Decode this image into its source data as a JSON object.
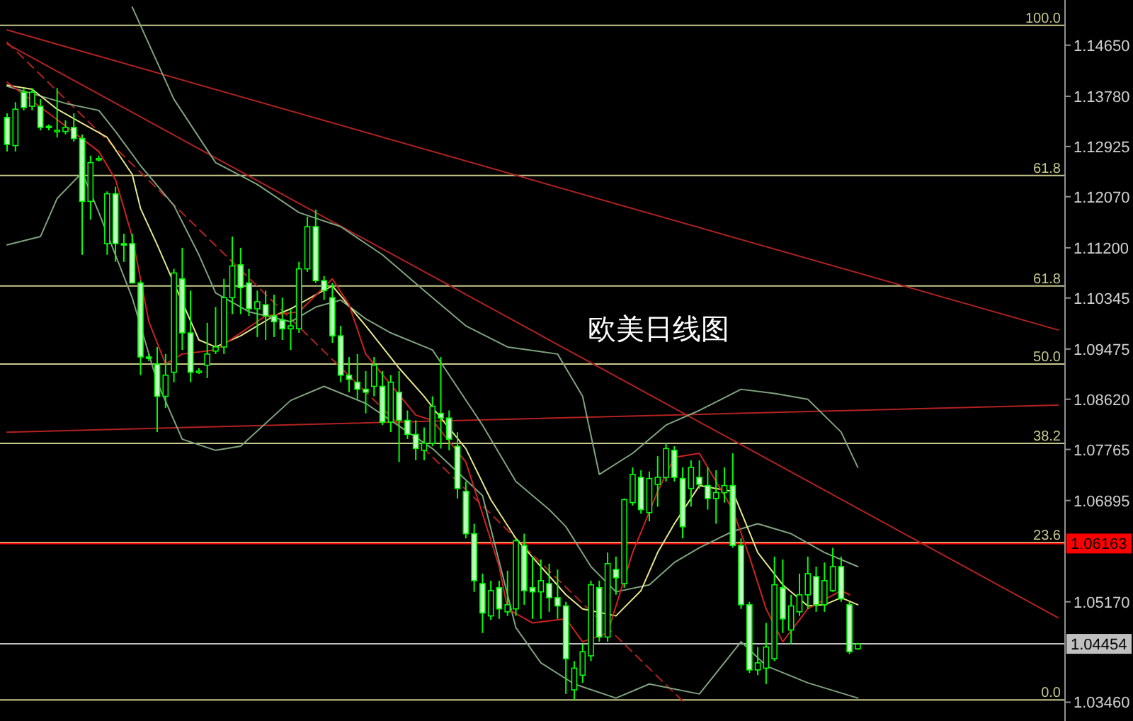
{
  "chart_data": {
    "type": "candlestick",
    "title": "欧美日线图",
    "categories": [
      null,
      null,
      null,
      null,
      null,
      null,
      null,
      null,
      null,
      null,
      null,
      null,
      null,
      null,
      null,
      null,
      null,
      null,
      null,
      null,
      null,
      null,
      null,
      null,
      null,
      null,
      null,
      null,
      null,
      null,
      null,
      null,
      null,
      null,
      null,
      null,
      null,
      null,
      null,
      null,
      null,
      null,
      null,
      null,
      null,
      null,
      null,
      null,
      null,
      null,
      null,
      null,
      null,
      null,
      null,
      null,
      null,
      null,
      null,
      null,
      null,
      null,
      null,
      null,
      null,
      null,
      null,
      null,
      null,
      null,
      null,
      null,
      null,
      null,
      null,
      null,
      null,
      null,
      null,
      null,
      null,
      null,
      null,
      null,
      null,
      null,
      null,
      null,
      null,
      null,
      null,
      null,
      null,
      null,
      null,
      null,
      null,
      null,
      null,
      null,
      null,
      null,
      null,
      null,
      null,
      null,
      null,
      null,
      null,
      null,
      null,
      null,
      null,
      null,
      null,
      null,
      null,
      null,
      null,
      null,
      null,
      null,
      null,
      null,
      null,
      null,
      null
    ],
    "color": "#00ff00",
    "ohlc": [
      [
        1.1342,
        1.1349,
        1.1284,
        1.1296
      ],
      [
        1.1294,
        1.1368,
        1.1284,
        1.1356
      ],
      [
        1.1385,
        1.1392,
        1.1354,
        1.1359
      ],
      [
        1.1361,
        1.1392,
        1.1354,
        1.1385
      ],
      [
        1.1361,
        1.1373,
        1.132,
        1.1325
      ],
      [
        1.1327,
        1.133,
        1.132,
        1.1325
      ],
      [
        1.1318,
        1.1392,
        1.1308,
        1.132
      ],
      [
        1.1318,
        1.1337,
        1.1313,
        1.1325
      ],
      [
        1.1325,
        1.1349,
        1.1301,
        1.1306
      ],
      [
        1.1306,
        1.1313,
        1.1108,
        1.1199
      ],
      [
        1.1199,
        1.1277,
        1.1168,
        1.1265
      ],
      [
        1.1272,
        1.1277,
        1.1267,
        1.1272
      ],
      [
        1.1127,
        1.1216,
        1.1108,
        1.1212
      ],
      [
        1.1212,
        1.1224,
        1.1096,
        1.1127
      ],
      [
        1.1127,
        1.1144,
        1.1096,
        1.1125
      ],
      [
        1.1127,
        1.1144,
        1.106,
        1.106
      ],
      [
        1.106,
        1.1064,
        1.0903,
        1.0934
      ],
      [
        1.0934,
        1.0939,
        1.0927,
        1.0932
      ],
      [
        1.0922,
        1.0951,
        1.0806,
        1.0867
      ],
      [
        1.0867,
        1.0939,
        1.0847,
        1.0903
      ],
      [
        1.0908,
        1.1084,
        1.0891,
        1.1077
      ],
      [
        1.1067,
        1.112,
        1.0946,
        1.0975
      ],
      [
        1.0975,
        1.1047,
        1.0891,
        1.0908
      ],
      [
        1.091,
        1.0915,
        1.0905,
        1.091
      ],
      [
        1.092,
        1.0992,
        1.0898,
        1.0939
      ],
      [
        1.0944,
        1.1019,
        1.0939,
        1.0951
      ],
      [
        1.0951,
        1.1067,
        1.0939,
        1.1035
      ],
      [
        1.1035,
        1.1139,
        1.1007,
        1.1089
      ],
      [
        1.1091,
        1.112,
        1.1007,
        1.1052
      ],
      [
        1.106,
        1.1084,
        1.1004,
        1.1016
      ],
      [
        1.1016,
        1.1047,
        1.0968,
        1.1028
      ],
      [
        1.1023,
        1.1047,
        1.0963,
        1.1004
      ],
      [
        1.1004,
        1.104,
        1.0968,
        1.0994
      ],
      [
        1.0997,
        1.1035,
        1.0963,
        1.0982
      ],
      [
        1.0982,
        1.1016,
        1.0946,
        1.0987
      ],
      [
        1.0982,
        1.1096,
        1.0975,
        1.1084
      ],
      [
        1.1084,
        1.1173,
        1.1079,
        1.1156
      ],
      [
        1.1156,
        1.1185,
        1.106,
        1.1064
      ],
      [
        1.1064,
        1.1072,
        1.1031,
        1.1047
      ],
      [
        1.1035,
        1.106,
        1.0958,
        1.097
      ],
      [
        1.097,
        1.0987,
        1.0891,
        1.0903
      ],
      [
        1.0903,
        1.0934,
        1.0874,
        1.0896
      ],
      [
        1.0891,
        1.0939,
        1.0862,
        1.0879
      ],
      [
        1.0879,
        1.091,
        1.0838,
        1.0874
      ],
      [
        1.0884,
        1.0934,
        1.0867,
        1.092
      ],
      [
        1.0884,
        1.091,
        1.0818,
        1.0823
      ],
      [
        1.0823,
        1.0903,
        1.0806,
        1.0891
      ],
      [
        1.0874,
        1.091,
        1.0755,
        1.0826
      ],
      [
        1.0826,
        1.0843,
        1.0794,
        1.0802
      ],
      [
        1.0802,
        1.0826,
        1.0758,
        1.0778
      ],
      [
        1.0775,
        1.0814,
        1.0758,
        1.0787
      ],
      [
        1.0787,
        1.0867,
        1.0782,
        1.085
      ],
      [
        1.0838,
        1.0934,
        1.0778,
        1.083
      ],
      [
        1.083,
        1.0843,
        1.0775,
        1.0794
      ],
      [
        1.0782,
        1.0806,
        1.0693,
        1.071
      ],
      [
        1.0705,
        1.0722,
        1.0625,
        1.0633
      ],
      [
        1.0633,
        1.065,
        1.0534,
        1.0553
      ],
      [
        1.0548,
        1.0565,
        1.0464,
        1.0498
      ],
      [
        1.0493,
        1.0553,
        1.0486,
        1.0536
      ],
      [
        1.0541,
        1.0553,
        1.0488,
        1.0505
      ],
      [
        1.05,
        1.057,
        1.0493,
        1.0512
      ],
      [
        1.0505,
        1.0625,
        1.0493,
        1.0621
      ],
      [
        1.0613,
        1.0633,
        1.0512,
        1.0536
      ],
      [
        1.0541,
        1.0594,
        1.0488,
        1.0534
      ],
      [
        1.0534,
        1.0589,
        1.0488,
        1.0553
      ],
      [
        1.0548,
        1.0582,
        1.05,
        1.0524
      ],
      [
        1.0524,
        1.0572,
        1.0488,
        1.051
      ],
      [
        1.051,
        1.0517,
        1.036,
        1.042
      ],
      [
        1.0367,
        1.0416,
        1.035,
        1.0404
      ],
      [
        1.0392,
        1.0445,
        1.0379,
        1.0432
      ],
      [
        1.0425,
        1.0553,
        1.0416,
        1.0546
      ],
      [
        1.0541,
        1.0553,
        1.0449,
        1.0457
      ],
      [
        1.0457,
        1.0601,
        1.0449,
        1.0582
      ],
      [
        1.0572,
        1.0594,
        1.0529,
        1.0558
      ],
      [
        1.0548,
        1.0693,
        1.0541,
        1.0691
      ],
      [
        1.0686,
        1.0746,
        1.0681,
        1.0734
      ],
      [
        1.0729,
        1.0741,
        1.0667,
        1.0674
      ],
      [
        1.0669,
        1.0739,
        1.0654,
        1.0727
      ],
      [
        1.0717,
        1.0765,
        1.0679,
        1.0729
      ],
      [
        1.0729,
        1.0787,
        1.0722,
        1.0778
      ],
      [
        1.0775,
        1.0782,
        1.0722,
        1.0729
      ],
      [
        1.0727,
        1.0746,
        1.0625,
        1.0645
      ],
      [
        1.071,
        1.0758,
        1.0679,
        1.0746
      ],
      [
        1.0729,
        1.0758,
        1.071,
        1.0717
      ],
      [
        1.0715,
        1.0746,
        1.0674,
        1.0693
      ],
      [
        1.0693,
        1.0741,
        1.065,
        1.0703
      ],
      [
        1.0703,
        1.0746,
        1.0686,
        1.0715
      ],
      [
        1.0715,
        1.077,
        1.0609,
        1.0613
      ],
      [
        1.0613,
        1.0625,
        1.0505,
        1.0512
      ],
      [
        1.0512,
        1.0517,
        1.0396,
        1.0401
      ],
      [
        1.0401,
        1.044,
        1.0392,
        1.0413
      ],
      [
        1.0404,
        1.0481,
        1.0377,
        1.044
      ],
      [
        1.042,
        1.0594,
        1.0416,
        1.0546
      ],
      [
        1.0541,
        1.0589,
        1.0464,
        1.0488
      ],
      [
        1.0469,
        1.0529,
        1.0445,
        1.051
      ],
      [
        1.05,
        1.0565,
        1.0493,
        1.0529
      ],
      [
        1.0529,
        1.0594,
        1.0505,
        1.0565
      ],
      [
        1.056,
        1.0577,
        1.05,
        1.0512
      ],
      [
        1.0512,
        1.0584,
        1.05,
        1.0553
      ],
      [
        1.0536,
        1.0609,
        1.0534,
        1.0577
      ],
      [
        1.0577,
        1.0594,
        1.0517,
        1.0522
      ],
      [
        1.0512,
        1.0517,
        1.0428,
        1.0432
      ],
      [
        1.0437,
        1.0447,
        1.0435,
        1.0445
      ],
      null,
      null,
      null,
      null,
      null,
      null,
      null,
      null,
      null,
      null,
      null,
      null,
      null,
      null,
      null,
      null,
      null,
      null,
      null,
      null,
      null,
      null,
      null,
      null
    ],
    "series": [
      {
        "type": "line",
        "color": "#b22222",
        "values": [
          1.1491,
          null,
          null,
          null,
          null,
          null,
          null,
          null,
          null,
          null,
          null,
          null,
          null,
          null,
          null,
          null,
          null,
          null,
          null,
          null,
          null,
          null,
          null,
          null,
          null,
          null,
          null,
          null,
          null,
          null,
          null,
          null,
          null,
          null,
          null,
          null,
          null,
          null,
          null,
          null,
          null,
          null,
          null,
          null,
          null,
          null,
          null,
          null,
          null,
          null,
          null,
          null,
          null,
          null,
          null,
          null,
          null,
          null,
          null,
          null,
          null,
          null,
          null,
          null,
          null,
          null,
          null,
          null,
          null,
          null,
          null,
          null,
          null,
          null,
          null,
          null,
          null,
          null,
          null,
          null,
          null,
          null,
          null,
          null,
          null,
          null,
          null,
          null,
          null,
          null,
          null,
          null,
          null,
          null,
          null,
          null,
          null,
          null,
          null,
          null,
          null,
          null,
          null,
          null,
          null,
          null,
          null,
          null,
          null,
          null,
          null,
          null,
          null,
          null,
          null,
          null,
          null,
          null,
          null,
          null,
          null,
          null,
          null,
          null,
          null,
          null,
          1.098
        ]
      },
      {
        "type": "line",
        "color": "#b22222",
        "values": [
          1.1467,
          null,
          null,
          null,
          null,
          null,
          null,
          null,
          null,
          null,
          null,
          null,
          null,
          null,
          null,
          null,
          null,
          null,
          null,
          null,
          null,
          null,
          null,
          null,
          null,
          null,
          null,
          null,
          null,
          null,
          null,
          null,
          null,
          null,
          null,
          null,
          null,
          null,
          null,
          null,
          null,
          null,
          null,
          null,
          null,
          null,
          null,
          null,
          null,
          null,
          null,
          null,
          null,
          null,
          null,
          null,
          null,
          null,
          null,
          null,
          null,
          null,
          null,
          null,
          null,
          null,
          null,
          null,
          null,
          null,
          null,
          null,
          null,
          null,
          null,
          null,
          null,
          null,
          null,
          null,
          null,
          null,
          null,
          null,
          null,
          null,
          null,
          null,
          null,
          null,
          null,
          null,
          null,
          null,
          null,
          null,
          null,
          null,
          null,
          null,
          null,
          null,
          null,
          null,
          null,
          null,
          null,
          null,
          null,
          null,
          null,
          null,
          null,
          null,
          null,
          null,
          null,
          null,
          null,
          null,
          null,
          null,
          null,
          null,
          null,
          null,
          1.049
        ]
      },
      {
        "type": "line",
        "color": "#b22222",
        "values": [
          1.0806,
          null,
          null,
          null,
          null,
          null,
          null,
          null,
          null,
          null,
          null,
          null,
          null,
          null,
          null,
          null,
          null,
          null,
          null,
          null,
          null,
          null,
          null,
          null,
          null,
          null,
          null,
          null,
          null,
          null,
          null,
          null,
          null,
          null,
          null,
          null,
          null,
          null,
          null,
          null,
          null,
          null,
          null,
          null,
          null,
          null,
          null,
          null,
          null,
          null,
          null,
          null,
          null,
          null,
          null,
          null,
          null,
          null,
          null,
          null,
          null,
          null,
          null,
          null,
          null,
          null,
          null,
          null,
          null,
          null,
          null,
          null,
          null,
          null,
          null,
          null,
          null,
          null,
          null,
          null,
          null,
          null,
          null,
          null,
          null,
          null,
          null,
          null,
          null,
          null,
          null,
          null,
          null,
          null,
          null,
          null,
          null,
          null,
          null,
          null,
          null,
          null,
          null,
          null,
          null,
          null,
          null,
          null,
          null,
          null,
          null,
          null,
          null,
          null,
          null,
          null,
          null,
          null,
          null,
          null,
          null,
          null,
          null,
          null,
          null,
          null,
          1.0852
        ]
      },
      {
        "type": "line",
        "color": "#b22222",
        "line_style": "dashed",
        "values": [
          1.147,
          null,
          null,
          null,
          null,
          null,
          null,
          null,
          null,
          null,
          null,
          null,
          null,
          null,
          null,
          null,
          null,
          null,
          null,
          null,
          null,
          null,
          null,
          null,
          null,
          null,
          null,
          null,
          null,
          null,
          null,
          null,
          null,
          null,
          null,
          null,
          null,
          null,
          null,
          null,
          null,
          null,
          null,
          null,
          null,
          null,
          null,
          null,
          null,
          null,
          null,
          null,
          null,
          null,
          null,
          null,
          null,
          null,
          null,
          null,
          null,
          null,
          null,
          null,
          null,
          null,
          null,
          null,
          null,
          null,
          null,
          null,
          null,
          null,
          null,
          null,
          null,
          null,
          null,
          null,
          null,
          1.0348,
          null,
          null,
          null,
          null,
          null,
          null,
          null,
          null,
          null,
          null,
          null,
          null,
          null,
          null,
          null,
          null,
          null,
          null,
          null,
          null,
          null,
          null,
          null,
          null,
          null,
          null,
          null,
          null,
          null,
          null,
          null,
          null,
          null,
          null,
          null,
          null,
          null,
          null,
          null,
          null,
          null,
          null,
          null,
          null,
          null
        ]
      },
      {
        "type": "line",
        "color": "#7fa37f",
        "values": [
          null,
          null,
          null,
          null,
          null,
          null,
          null,
          null,
          null,
          null,
          null,
          null,
          null,
          null,
          null,
          1.153,
          null,
          null,
          null,
          null,
          1.1373,
          null,
          null,
          null,
          null,
          1.1265,
          null,
          null,
          null,
          null,
          1.1228,
          null,
          null,
          null,
          null,
          1.118,
          null,
          null,
          null,
          null,
          1.1156,
          null,
          null,
          null,
          null,
          1.1108,
          null,
          null,
          null,
          null,
          1.1047,
          null,
          null,
          null,
          null,
          1.0987,
          null,
          null,
          null,
          null,
          1.0951,
          null,
          null,
          null,
          null,
          null,
          1.0939,
          null,
          null,
          1.0867,
          null,
          1.0734,
          null,
          null,
          null,
          1.077,
          null,
          null,
          null,
          1.0818,
          null,
          null,
          null,
          1.0843,
          null,
          null,
          null,
          null,
          1.0879,
          null,
          null,
          null,
          1.0872,
          null,
          null,
          null,
          1.0862,
          null,
          null,
          null,
          1.0806,
          null,
          1.0746,
          null,
          null,
          null,
          null,
          null,
          null,
          null,
          null,
          null,
          null,
          null,
          null,
          null,
          null,
          null,
          null,
          null,
          null,
          null,
          null,
          null,
          null,
          null,
          null
        ]
      },
      {
        "type": "line",
        "color": "#7fa37f",
        "values": [
          1.1395,
          null,
          null,
          null,
          null,
          null,
          null,
          1.1366,
          null,
          null,
          null,
          1.1354,
          null,
          1.1318,
          null,
          null,
          1.126,
          null,
          null,
          null,
          1.1192,
          null,
          null,
          1.1108,
          null,
          1.1043,
          null,
          null,
          null,
          1.1011,
          null,
          null,
          null,
          null,
          1.0994,
          null,
          null,
          1.1019,
          null,
          null,
          1.1031,
          null,
          null,
          1.0999,
          null,
          null,
          1.0975,
          null,
          null,
          null,
          null,
          1.0946,
          null,
          null,
          null,
          null,
          null,
          1.0818,
          null,
          null,
          null,
          1.0722,
          null,
          null,
          null,
          1.0674,
          null,
          1.0645,
          null,
          null,
          1.0577,
          null,
          null,
          1.0534,
          null,
          null,
          null,
          1.0546,
          null,
          null,
          1.0584,
          null,
          null,
          1.0609,
          null,
          null,
          null,
          1.0637,
          null,
          null,
          1.065,
          null,
          null,
          null,
          1.0633,
          null,
          null,
          null,
          1.0601,
          null,
          null,
          null,
          1.0577,
          null,
          null,
          null,
          null,
          null,
          null,
          null,
          null,
          null,
          null,
          null,
          null,
          null,
          null,
          null,
          null,
          null,
          null,
          null,
          null,
          null,
          null,
          null,
          null
        ]
      },
      {
        "type": "line",
        "color": "#7fa37f",
        "values": [
          1.1125,
          null,
          null,
          null,
          1.1139,
          null,
          1.1204,
          null,
          null,
          1.1248,
          null,
          1.118,
          null,
          null,
          null,
          1.1035,
          null,
          null,
          1.0891,
          null,
          null,
          1.0794,
          null,
          null,
          null,
          1.0775,
          null,
          null,
          1.0782,
          null,
          null,
          null,
          null,
          null,
          1.086,
          null,
          null,
          null,
          1.0884,
          null,
          null,
          null,
          null,
          1.0855,
          null,
          null,
          1.0826,
          null,
          null,
          null,
          null,
          1.0778,
          null,
          null,
          null,
          null,
          null,
          1.0698,
          null,
          null,
          null,
          1.0473,
          null,
          null,
          1.0413,
          null,
          null,
          null,
          1.0377,
          null,
          null,
          null,
          null,
          1.0353,
          null,
          null,
          null,
          1.0377,
          null,
          null,
          null,
          null,
          null,
          1.036,
          null,
          null,
          null,
          null,
          1.0449,
          null,
          null,
          1.0408,
          null,
          null,
          null,
          null,
          1.0379,
          null,
          null,
          null,
          null,
          null,
          1.0353,
          null,
          null,
          null,
          null,
          null,
          null,
          null,
          null,
          null,
          null,
          null,
          null,
          null,
          null,
          null,
          null,
          null,
          null,
          null,
          null,
          null,
          null,
          null,
          null
        ]
      },
      {
        "type": "line",
        "color": "#e6e68a",
        "values": [
          1.1397,
          null,
          null,
          1.139,
          null,
          null,
          1.1356,
          null,
          null,
          1.1332,
          null,
          null,
          1.1308,
          null,
          null,
          1.1245,
          1.1187,
          null,
          1.1125,
          null,
          1.106,
          null,
          null,
          1.0963,
          null,
          1.0951,
          null,
          null,
          1.097,
          null,
          null,
          null,
          1.1004,
          null,
          1.1016,
          null,
          null,
          1.104,
          null,
          1.1055,
          null,
          null,
          null,
          1.0987,
          null,
          null,
          null,
          1.0915,
          null,
          null,
          1.0867,
          null,
          1.083,
          null,
          null,
          1.0778,
          null,
          null,
          1.0691,
          null,
          null,
          1.0625,
          null,
          null,
          1.0577,
          null,
          null,
          1.0529,
          null,
          1.0505,
          null,
          null,
          null,
          1.0493,
          null,
          null,
          1.0536,
          null,
          1.0601,
          null,
          1.065,
          null,
          null,
          1.0715,
          null,
          null,
          null,
          1.0705,
          null,
          null,
          1.0601,
          null,
          null,
          1.0546,
          null,
          null,
          1.051,
          null,
          1.0512,
          null,
          1.0524,
          null,
          1.0512,
          null,
          null,
          null,
          null,
          null,
          null,
          null,
          null,
          null,
          null,
          null,
          null,
          null,
          null,
          null,
          null,
          null,
          null,
          null,
          null,
          null,
          null,
          null,
          null
        ]
      },
      {
        "type": "line",
        "color": "#cc2222",
        "values": [
          1.1402,
          null,
          null,
          null,
          null,
          1.1349,
          null,
          null,
          null,
          null,
          null,
          1.1284,
          null,
          1.1236,
          null,
          1.1139,
          null,
          1.0994,
          null,
          1.0922,
          null,
          1.0939,
          null,
          null,
          null,
          1.0946,
          null,
          null,
          null,
          null,
          null,
          1.1004,
          null,
          null,
          null,
          1.1011,
          null,
          null,
          null,
          1.1067,
          null,
          1.1023,
          null,
          1.0939,
          null,
          null,
          null,
          null,
          null,
          1.0835,
          null,
          1.0826,
          null,
          null,
          null,
          1.0755,
          null,
          1.0667,
          null,
          1.0577,
          1.0505,
          null,
          null,
          1.0481,
          null,
          null,
          null,
          1.0488,
          null,
          1.0449,
          null,
          null,
          1.0464,
          null,
          null,
          1.0601,
          null,
          null,
          1.0705,
          null,
          1.0763,
          null,
          null,
          1.077,
          null,
          null,
          null,
          1.0674,
          null,
          1.0594,
          null,
          1.0505,
          null,
          1.0449,
          null,
          null,
          1.0505,
          null,
          null,
          null,
          1.0536,
          1.0529,
          null,
          null,
          null,
          null,
          null,
          null,
          null,
          null,
          null,
          null,
          null,
          null,
          null,
          null,
          null,
          null,
          null,
          null,
          null,
          null,
          null,
          null,
          null,
          null,
          null
        ]
      }
    ],
    "ref_lines": [
      {
        "axis": "y",
        "value": 1.1499,
        "color": "#c8c88c"
      },
      {
        "axis": "y",
        "value": 1.1243,
        "color": "#c8c88c"
      },
      {
        "axis": "y",
        "value": 1.1055,
        "color": "#c8c88c"
      },
      {
        "axis": "y",
        "value": 1.0922,
        "color": "#c8c88c"
      },
      {
        "axis": "y",
        "value": 1.0787,
        "color": "#c8c88c"
      },
      {
        "axis": "y",
        "value": 1.0618,
        "color": "#c8c88c"
      },
      {
        "axis": "y",
        "value": 1.035,
        "color": "#c8c88c"
      },
      {
        "axis": "y",
        "value": 1.06163,
        "label": "1.06163",
        "color": "#ff0000"
      },
      {
        "axis": "y",
        "value": 1.04454,
        "label": "1.04454",
        "color": "#c0c0c0"
      }
    ],
    "annotations": [
      {
        "text": "100.0",
        "y": 1.1499
      },
      {
        "text": "61.8",
        "y": 1.1243
      },
      {
        "text": "61.8",
        "y": 1.1055
      },
      {
        "text": "50.0",
        "y": 1.0922
      },
      {
        "text": "38.2",
        "y": 1.0787
      },
      {
        "text": "23.6",
        "y": 1.0618
      },
      {
        "text": "0.0",
        "y": 1.035
      }
    ],
    "ylim": [
      1.0314,
      1.1542
    ],
    "yticks": [
      {
        "value": 1.1465,
        "label": "1.14650"
      },
      {
        "value": 1.1378,
        "label": "1.13780"
      },
      {
        "value": 1.12925,
        "label": "1.12925"
      },
      {
        "value": 1.1207,
        "label": "1.12070"
      },
      {
        "value": 1.112,
        "label": "1.11200"
      },
      {
        "value": 1.10345,
        "label": "1.10345"
      },
      {
        "value": 1.09475,
        "label": "1.09475"
      },
      {
        "value": 1.0862,
        "label": "1.08620"
      },
      {
        "value": 1.07765,
        "label": "1.07765"
      },
      {
        "value": 1.06895,
        "label": "1.06895"
      },
      {
        "value": 1.0517,
        "label": "1.05170"
      },
      {
        "value": 1.0346,
        "label": "1.03460"
      }
    ],
    "tick_labels": "y"
  }
}
